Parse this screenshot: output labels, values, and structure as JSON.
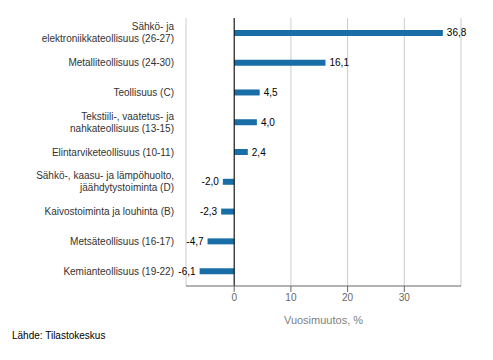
{
  "chart_data": {
    "type": "bar",
    "orientation": "horizontal",
    "categories": [
      "Kemianteollisuus (19-22)",
      "Metsäteollisuus (16-17)",
      "Kaivostoiminta ja louhinta (B)",
      "Sähkö-, kaasu- ja lämpöhuolto,\njäähdytystoiminta (D)",
      "Elintarviketeollisuus (10-11)",
      "Tekstiili-, vaatetus- ja\nnahkateollisuus (13-15)",
      "Teollisuus (C)",
      "Metalliteollisuus (24-30)",
      "Sähkö- ja\nelektroniikkateollisuus (26-27)"
    ],
    "values": [
      -6.1,
      -4.7,
      -2.3,
      -2.0,
      2.4,
      4.0,
      4.5,
      16.1,
      36.8
    ],
    "value_labels": [
      "-6,1",
      "-4,7",
      "-2,3",
      "-2,0",
      "2,4",
      "4,0",
      "4,5",
      "16,1",
      "36,8"
    ],
    "data_labels": true,
    "color": "#1a6ea8",
    "xlabel": "Vuosimuutos, %",
    "annotations": [
      "Lähde: Tilastokeskus"
    ],
    "xlim": [
      -8.5,
      40
    ],
    "xticks": [
      0,
      10,
      20,
      30
    ],
    "grid": true
  }
}
